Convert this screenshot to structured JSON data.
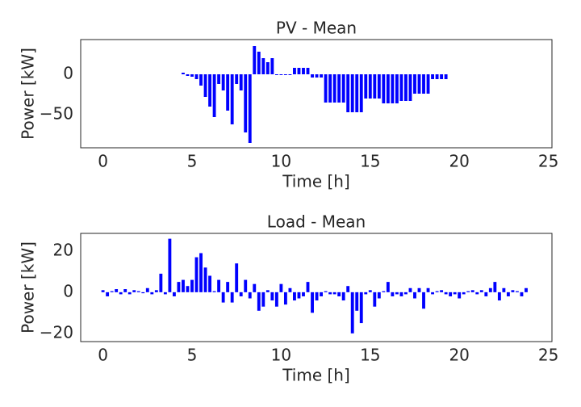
{
  "chart_data": [
    {
      "type": "bar",
      "title": "PV - Mean",
      "xlabel": "Time [h]",
      "ylabel": "Power [kW]",
      "color": "#0000ff",
      "x": [
        4.5,
        4.75,
        5.0,
        5.25,
        5.5,
        5.75,
        6.0,
        6.25,
        6.5,
        6.75,
        7.0,
        7.25,
        7.5,
        7.75,
        8.0,
        8.25,
        8.5,
        8.75,
        9.0,
        9.25,
        9.5,
        9.75,
        10.0,
        10.25,
        10.5,
        10.75,
        11.0,
        11.25,
        11.5,
        11.75,
        12.0,
        12.25,
        12.5,
        12.75,
        13.0,
        13.25,
        13.5,
        13.75,
        14.0,
        14.25,
        14.5,
        14.75,
        15.0,
        15.25,
        15.5,
        15.75,
        16.0,
        16.25,
        16.5,
        16.75,
        17.0,
        17.25,
        17.5,
        17.75,
        18.0,
        18.25,
        18.5,
        18.75,
        19.0,
        19.25
      ],
      "values": [
        2,
        -2,
        -3,
        -6,
        -14,
        -28,
        -40,
        -53,
        -12,
        -20,
        -45,
        -62,
        -12,
        -20,
        -72,
        -85,
        35,
        28,
        20,
        15,
        20,
        -1,
        -1,
        -1,
        -1,
        8,
        8,
        8,
        8,
        -4,
        -4,
        -4,
        -35,
        -35,
        -35,
        -35,
        -35,
        -47,
        -47,
        -47,
        -47,
        -30,
        -30,
        -30,
        -30,
        -36,
        -36,
        -36,
        -36,
        -33,
        -33,
        -33,
        -24,
        -24,
        -24,
        -24,
        -6,
        -6,
        -6,
        -6
      ],
      "xlim": [
        -1.25,
        25.2
      ],
      "xticks": [
        0,
        5,
        10,
        15,
        20,
        25
      ],
      "ylim": [
        -91,
        43
      ],
      "yticks": [
        {
          "value": -50,
          "label": "−50"
        },
        0
      ]
    },
    {
      "type": "bar",
      "title": "Load - Mean",
      "xlabel": "Time [h]",
      "ylabel": "Power [kW]",
      "color": "#0000ff",
      "x": [
        0.0,
        0.25,
        0.5,
        0.75,
        1.0,
        1.25,
        1.5,
        1.75,
        2.0,
        2.25,
        2.5,
        2.75,
        3.0,
        3.25,
        3.5,
        3.75,
        4.0,
        4.25,
        4.5,
        4.75,
        5.0,
        5.25,
        5.5,
        5.75,
        6.0,
        6.25,
        6.5,
        6.75,
        7.0,
        7.25,
        7.5,
        7.75,
        8.0,
        8.25,
        8.5,
        8.75,
        9.0,
        9.25,
        9.5,
        9.75,
        10.0,
        10.25,
        10.5,
        10.75,
        11.0,
        11.25,
        11.5,
        11.75,
        12.0,
        12.25,
        12.5,
        12.75,
        13.0,
        13.25,
        13.5,
        13.75,
        14.0,
        14.25,
        14.5,
        14.75,
        15.0,
        15.25,
        15.5,
        15.75,
        16.0,
        16.25,
        16.5,
        16.75,
        17.0,
        17.25,
        17.5,
        17.75,
        18.0,
        18.25,
        18.5,
        18.75,
        19.0,
        19.25,
        19.5,
        19.75,
        20.0,
        20.25,
        20.5,
        20.75,
        21.0,
        21.25,
        21.5,
        21.75,
        22.0,
        22.25,
        22.5,
        22.75,
        23.0,
        23.25,
        23.5,
        23.75
      ],
      "values": [
        1,
        -2,
        0.5,
        1.5,
        -1,
        1.5,
        -1,
        1,
        0.5,
        -0.5,
        2,
        -1,
        1,
        9,
        -1,
        26,
        -2,
        5,
        6,
        3,
        6,
        17,
        19,
        12,
        8,
        0.5,
        6,
        -5,
        5,
        -5,
        14,
        -2,
        6,
        -3,
        4,
        -9,
        -7,
        1,
        -4,
        -7,
        4,
        -6,
        2,
        -4,
        -3,
        -2,
        5,
        -10,
        -4,
        -2,
        0.5,
        -1,
        -1,
        -2,
        -4,
        3,
        -20,
        -9,
        -15,
        -1,
        1,
        -7,
        -3,
        0.5,
        5,
        -2,
        -1,
        -2,
        -1,
        2,
        -3,
        2,
        -8,
        2,
        -1,
        0.5,
        1,
        -1,
        -2,
        -1,
        -3,
        -1,
        0.5,
        1,
        -1,
        1,
        -2,
        2,
        5,
        -4,
        2,
        -2,
        1,
        0.5,
        -2,
        2
      ],
      "xlim": [
        -1.25,
        25.2
      ],
      "xticks": [
        0,
        5,
        10,
        15,
        20,
        25
      ],
      "ylim": [
        -24,
        28.6
      ],
      "yticks": [
        {
          "value": -20,
          "label": "−20"
        },
        0,
        20
      ]
    }
  ]
}
